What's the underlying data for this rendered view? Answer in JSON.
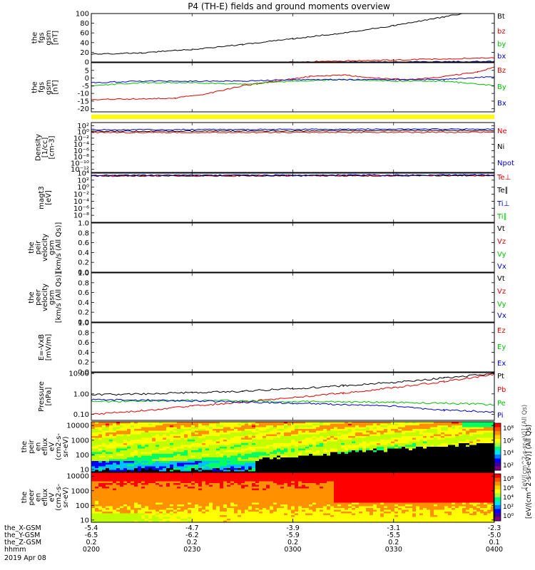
{
  "title": "P4 (TH-E) fields and ground moments overview",
  "date": "2019 Apr 08",
  "time_range": [
    "0200",
    "0400"
  ],
  "colors": {
    "black": "#000000",
    "red": "#e00000",
    "green": "#00c000",
    "blue": "#0000d0",
    "yellow": "#ffff00"
  },
  "chart_data": [
    {
      "type": "line",
      "name": "fgs-gsm-magnitude",
      "ylabel": [
        "the",
        "fgs",
        "gsm",
        "[nT]"
      ],
      "ylim": [
        0,
        100
      ],
      "yticks": [
        "100",
        "80",
        "60",
        "40",
        "20",
        "0"
      ],
      "legend": [
        "Bt",
        "bz",
        "by",
        "bx"
      ],
      "legend_colors": [
        "#000000",
        "#e00000",
        "#00c000",
        "#0000d0"
      ],
      "series": [
        {
          "name": "Bt",
          "color": "#000000",
          "x": [
            "0200",
            "0215",
            "0230",
            "0245",
            "0300",
            "0315",
            "0330",
            "0345",
            "0353"
          ],
          "values": [
            16,
            19,
            26,
            36,
            48,
            60,
            75,
            93,
            103
          ]
        },
        {
          "name": "bz",
          "color": "#e00000",
          "x": [
            "0200",
            "0230",
            "0300",
            "0330",
            "0400"
          ],
          "values": [
            -14,
            -7,
            0,
            4,
            9
          ]
        },
        {
          "name": "by",
          "color": "#00c000",
          "x": [
            "0200",
            "0230",
            "0300",
            "0330",
            "0400"
          ],
          "values": [
            -5,
            -3,
            -3,
            -2,
            -5
          ]
        },
        {
          "name": "bx",
          "color": "#0000d0",
          "x": [
            "0200",
            "0230",
            "0300",
            "0330",
            "0400"
          ],
          "values": [
            -3,
            -2,
            -1,
            0,
            1
          ]
        }
      ]
    },
    {
      "type": "line",
      "name": "fgs-gsm-components",
      "ylabel": [
        "the",
        "fgs",
        "gsm",
        "[nT]"
      ],
      "ylim": [
        -22,
        10
      ],
      "yticks": [
        "5",
        "0",
        "-5",
        "-10",
        "-15",
        "-20"
      ],
      "legend": [
        "Bz",
        "By",
        "Bx"
      ],
      "legend_colors": [
        "#e00000",
        "#00c000",
        "#0000d0"
      ],
      "series": [
        {
          "name": "Bz",
          "color": "#e00000",
          "x": [
            "0200",
            "0215",
            "0225",
            "0235",
            "0245",
            "0255",
            "0305",
            "0315",
            "0325",
            "0335",
            "0345",
            "0355",
            "0400"
          ],
          "values": [
            -14,
            -13.5,
            -13,
            -10,
            -5,
            -2,
            1,
            2,
            0,
            -1,
            1,
            4,
            7
          ]
        },
        {
          "name": "By",
          "color": "#00c000",
          "x": [
            "0200",
            "0215",
            "0230",
            "0245",
            "0300",
            "0315",
            "0330",
            "0345",
            "0400"
          ],
          "values": [
            -5,
            -3,
            -3,
            -4,
            -2,
            -1,
            -2,
            -2,
            -5
          ]
        },
        {
          "name": "Bx",
          "color": "#0000d0",
          "x": [
            "0200",
            "0215",
            "0230",
            "0245",
            "0300",
            "0315",
            "0330",
            "0345",
            "0400"
          ],
          "values": [
            -3,
            -2,
            -2,
            -2,
            -1,
            -1,
            -1,
            -1,
            1
          ]
        }
      ]
    },
    {
      "type": "line",
      "name": "density",
      "ylabel": [
        "Density",
        "[1/cc]",
        "[cm-3]"
      ],
      "yscale": "log",
      "ylim": [
        "1e-13",
        "1e3"
      ],
      "yticks": [
        "10²",
        "10⁰",
        "10⁻²",
        "10⁻⁴",
        "10⁻⁶",
        "10⁻⁸",
        "10⁻¹⁰",
        "10⁻¹²"
      ],
      "legend": [
        "Ne",
        "Ni",
        "Npot"
      ],
      "legend_colors": [
        "#e00000",
        "#000000",
        "#0000d0"
      ],
      "series": [
        {
          "name": "Ne",
          "color": "#e00000",
          "x": [
            "0200",
            "0400"
          ],
          "values": [
            0.6,
            0.8
          ]
        },
        {
          "name": "Ni",
          "color": "#000000",
          "x": [
            "0200",
            "0400"
          ],
          "values": [
            1.5,
            3
          ]
        },
        {
          "name": "Npot",
          "color": "#0000d0",
          "x": [
            "0200",
            "0400"
          ],
          "values": [
            5,
            8
          ]
        }
      ]
    },
    {
      "type": "line",
      "name": "temperature",
      "ylabel": [
        "magt3",
        "[eV]"
      ],
      "yscale": "log",
      "ylim": [
        "1e-10",
        "1e4"
      ],
      "yticks": [
        "10⁴",
        "10²",
        "10⁰",
        "10⁻²",
        "10⁻⁴",
        "10⁻⁶",
        "10⁻⁸"
      ],
      "legend": [
        "Te⊥",
        "Te∥",
        "Ti⊥",
        "Ti∥"
      ],
      "legend_colors": [
        "#e00000",
        "#000000",
        "#0000d0",
        "#00c000"
      ],
      "series": [
        {
          "name": "Te⊥",
          "color": "#e00000",
          "x": [
            "0200",
            "0400"
          ],
          "values": [
            1500,
            1800
          ]
        },
        {
          "name": "Te∥",
          "color": "#000000",
          "x": [
            "0200",
            "0400"
          ],
          "values": [
            1800,
            2200
          ]
        },
        {
          "name": "Ti⊥",
          "color": "#0000d0",
          "x": [
            "0200",
            "0400"
          ],
          "values": [
            2500,
            3000
          ]
        }
      ]
    },
    {
      "type": "line",
      "name": "peir-velocity",
      "ylabel": [
        "the",
        "peir",
        "velocity",
        "gsm",
        "[km/s (All Qs)]"
      ],
      "ylim": [
        0,
        1
      ],
      "yticks": [
        "1.0",
        "0.8",
        "0.6",
        "0.4",
        "0.2",
        "0.0"
      ],
      "legend": [
        "Vt",
        "Vz",
        "Vy",
        "Vx"
      ],
      "legend_colors": [
        "#000000",
        "#e00000",
        "#00c000",
        "#0000d0"
      ],
      "series": []
    },
    {
      "type": "line",
      "name": "peer-velocity",
      "ylabel": [
        "the",
        "peer",
        "velocity",
        "gsm",
        "[km/s (All Qs)]"
      ],
      "ylim": [
        0,
        1
      ],
      "yticks": [
        "1.0",
        "0.8",
        "0.6",
        "0.4",
        "0.2",
        "0.0"
      ],
      "legend": [
        "Vt",
        "Vz",
        "Vy",
        "Vx"
      ],
      "legend_colors": [
        "#000000",
        "#e00000",
        "#00c000",
        "#0000d0"
      ],
      "series": []
    },
    {
      "type": "line",
      "name": "efield",
      "ylabel": [
        "E=-VxB",
        "[mV/m]"
      ],
      "ylim": [
        0,
        1
      ],
      "yticks": [
        "1.0",
        "0.8",
        "0.6",
        "0.4",
        "0.2",
        "0.0"
      ],
      "legend": [
        "Ez",
        "Ey",
        "Ex"
      ],
      "legend_colors": [
        "#e00000",
        "#00c000",
        "#0000d0"
      ],
      "series": []
    },
    {
      "type": "line",
      "name": "pressure",
      "ylabel": [
        "Pressure",
        "[nPa]"
      ],
      "yscale": "log",
      "ylim": [
        0.05,
        11
      ],
      "yticks": [
        "10.00",
        "1.00",
        "0.10"
      ],
      "legend": [
        "Pt",
        "Pb",
        "Pe",
        "Pi"
      ],
      "legend_colors": [
        "#000000",
        "#e00000",
        "#00c000",
        "#0000d0"
      ],
      "series": [
        {
          "name": "Pt",
          "color": "#000000",
          "x": [
            "0200",
            "0215",
            "0230",
            "0245",
            "0300",
            "0315",
            "0330",
            "0345",
            "0400"
          ],
          "values": [
            0.9,
            1.0,
            1.15,
            1.35,
            1.8,
            2.5,
            3.7,
            6,
            10
          ]
        },
        {
          "name": "Pb",
          "color": "#e00000",
          "x": [
            "0200",
            "0215",
            "0230",
            "0245",
            "0300",
            "0315",
            "0330",
            "0345",
            "0400"
          ],
          "values": [
            0.1,
            0.15,
            0.25,
            0.4,
            0.65,
            1.1,
            2.0,
            4,
            9
          ]
        },
        {
          "name": "Pe",
          "color": "#00c000",
          "x": [
            "0200",
            "0215",
            "0230",
            "0245",
            "0300",
            "0315",
            "0330",
            "0345",
            "0400"
          ],
          "values": [
            0.42,
            0.45,
            0.48,
            0.45,
            0.42,
            0.4,
            0.38,
            0.35,
            0.3
          ]
        },
        {
          "name": "Pi",
          "color": "#0000d0",
          "x": [
            "0200",
            "0215",
            "0230",
            "0245",
            "0300",
            "0315",
            "0330",
            "0345",
            "0400"
          ],
          "values": [
            0.52,
            0.5,
            0.45,
            0.4,
            0.35,
            0.3,
            0.25,
            0.16,
            0.13
          ]
        }
      ]
    },
    {
      "type": "heatmap",
      "name": "peir-energy-flux",
      "ylabel": [
        "the",
        "peir",
        "en",
        "eflux",
        "eV",
        "(cm2-s-",
        "sr-eV)"
      ],
      "yscale": "log",
      "ylim": [
        7,
        18000
      ],
      "yticks": [
        "10000",
        "1000",
        "100",
        "10"
      ],
      "colorbar": {
        "label": "[eV/(cm^2-s-sr-eV)] (All Qs)",
        "ticks": [
          "10⁸",
          "10⁶",
          "10⁴",
          "10²"
        ]
      }
    },
    {
      "type": "heatmap",
      "name": "peer-energy-flux",
      "ylabel": [
        "the",
        "peer",
        "en",
        "eflux",
        "eV",
        "(cm2-s-",
        "sr-eV)"
      ],
      "yscale": "log",
      "ylim": [
        7,
        18000
      ],
      "yticks": [
        "10000",
        "1000",
        "100",
        "10"
      ],
      "colorbar": {
        "label": "[eV/(cm^2-s-sr-eV)] (All Qs)",
        "ticks": [
          "10⁸",
          "10⁶",
          "10⁴",
          "10²",
          "10⁰"
        ]
      }
    }
  ],
  "xaxis": {
    "row_labels": [
      "the_X-GSM",
      "the_Y-GSM",
      "the_Z-GSM",
      "hhmm"
    ],
    "ticks": [
      {
        "X": "-5.4",
        "Y": "-6.5",
        "Z": "0.2",
        "hhmm": "0200"
      },
      {
        "X": "-4.7",
        "Y": "-6.2",
        "Z": "0.2",
        "hhmm": "0230"
      },
      {
        "X": "-3.9",
        "Y": "-5.9",
        "Z": "0.2",
        "hhmm": "0300"
      },
      {
        "X": "-3.1",
        "Y": "-5.5",
        "Z": "0.2",
        "hhmm": "0330"
      },
      {
        "X": "-2.3",
        "Y": "-5.0",
        "Z": "0.1",
        "hhmm": "0400"
      }
    ]
  }
}
